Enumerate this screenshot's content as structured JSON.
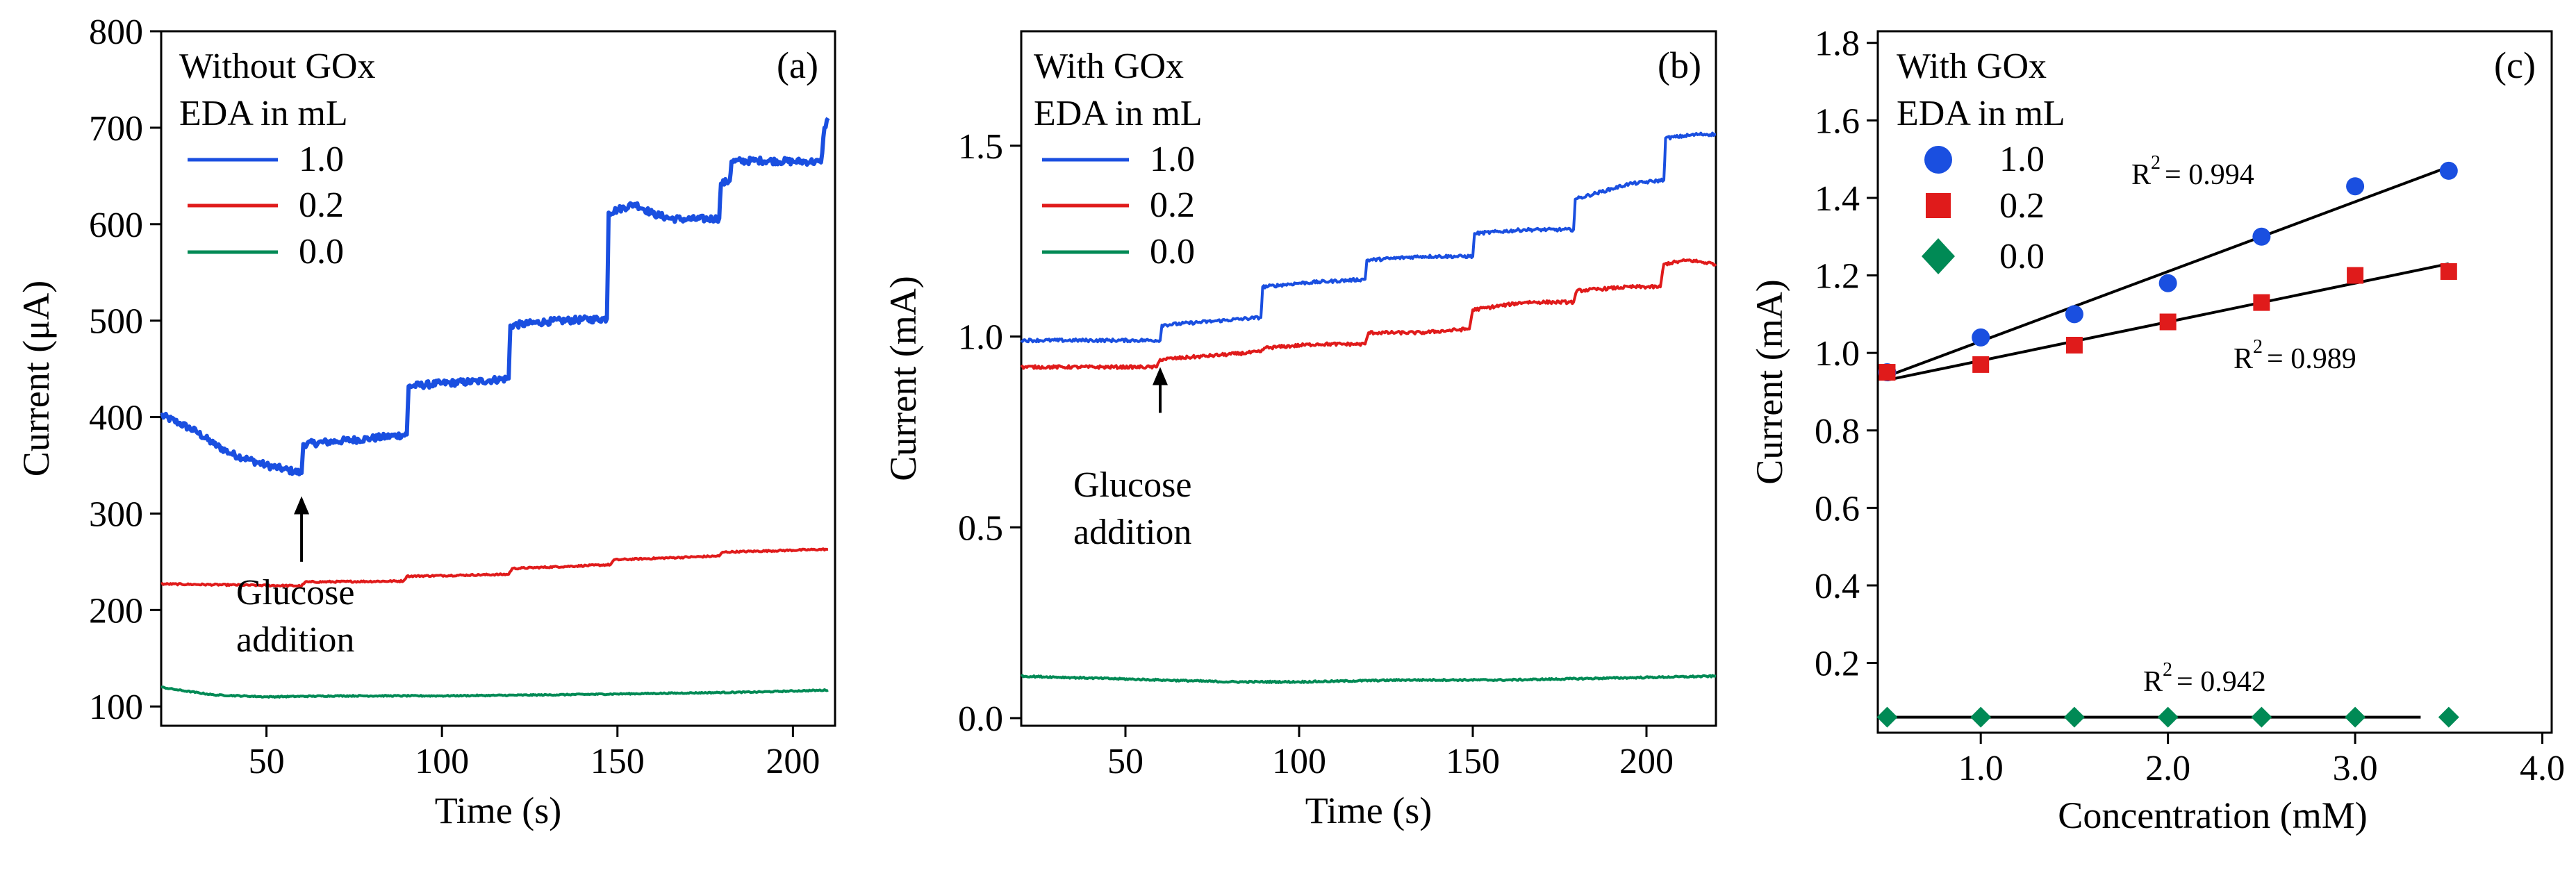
{
  "colors": {
    "blue": "#1a4fe0",
    "red": "#e01b1b",
    "green": "#008a55",
    "axis": "#000000"
  },
  "chart_data": [
    {
      "type": "line",
      "panel_label": "(a)",
      "title": "",
      "xlabel": "Time (s)",
      "ylabel": "Current (μA)",
      "xlim": [
        20,
        212
      ],
      "ylim": [
        80,
        800
      ],
      "xticks": [
        50,
        100,
        150,
        200
      ],
      "yticks": [
        100,
        200,
        300,
        400,
        500,
        600,
        700,
        800
      ],
      "xtick_labels": [
        "50",
        "100",
        "150",
        "200"
      ],
      "ytick_labels": [
        "100",
        "200",
        "300",
        "400",
        "500",
        "600",
        "700",
        "800"
      ],
      "legend_title": [
        "Without GOx",
        "EDA in mL"
      ],
      "annotation": {
        "lines": [
          "Glucose",
          "addition"
        ],
        "arrow_x": 60,
        "arrow_y_from": 250,
        "arrow_y_to": 318
      },
      "series": [
        {
          "name": "1.0",
          "color": "blue",
          "noise": 3.5,
          "points": [
            [
              20,
              402
            ],
            [
              25,
              394
            ],
            [
              30,
              385
            ],
            [
              35,
              372
            ],
            [
              40,
              362
            ],
            [
              45,
              356
            ],
            [
              50,
              350
            ],
            [
              55,
              346
            ],
            [
              60,
              342
            ],
            [
              60.5,
              372
            ],
            [
              70,
              375
            ],
            [
              80,
              378
            ],
            [
              90,
              382
            ],
            [
              90.5,
              432
            ],
            [
              100,
              435
            ],
            [
              110,
              437
            ],
            [
              119,
              440
            ],
            [
              119.5,
              495
            ],
            [
              130,
              499
            ],
            [
              140,
              501
            ],
            [
              147,
              502
            ],
            [
              147.5,
              612
            ],
            [
              150,
              615
            ],
            [
              155,
              621
            ],
            [
              160,
              611
            ],
            [
              165,
              606
            ],
            [
              170,
              605
            ],
            [
              179,
              606
            ],
            [
              179.5,
              642
            ],
            [
              182,
              645
            ],
            [
              182.5,
              665
            ],
            [
              190,
              666
            ],
            [
              200,
              665
            ],
            [
              205,
              665
            ],
            [
              208,
              664
            ],
            [
              209,
              700
            ],
            [
              210,
              710
            ]
          ]
        },
        {
          "name": "0.2",
          "color": "red",
          "noise": 0.8,
          "points": [
            [
              20,
              227
            ],
            [
              40,
              226
            ],
            [
              60,
              225
            ],
            [
              61,
              229
            ],
            [
              89,
              230
            ],
            [
              90,
              235
            ],
            [
              119,
              237
            ],
            [
              120,
              243
            ],
            [
              148,
              247
            ],
            [
              149,
              252
            ],
            [
              179,
              256
            ],
            [
              180,
              260
            ],
            [
              210,
              263
            ]
          ]
        },
        {
          "name": "0.0",
          "color": "green",
          "noise": 0.6,
          "points": [
            [
              20,
              120
            ],
            [
              25,
              117
            ],
            [
              35,
              112
            ],
            [
              50,
              110
            ],
            [
              70,
              111
            ],
            [
              100,
              111
            ],
            [
              130,
              112
            ],
            [
              150,
              113
            ],
            [
              170,
              114
            ],
            [
              190,
              115
            ],
            [
              210,
              117
            ]
          ]
        }
      ]
    },
    {
      "type": "line",
      "panel_label": "(b)",
      "title": "",
      "xlabel": "Time (s)",
      "ylabel": "Current (mA)",
      "xlim": [
        20,
        220
      ],
      "ylim": [
        -0.02,
        1.8
      ],
      "xticks": [
        50,
        100,
        150,
        200
      ],
      "yticks": [
        0.0,
        0.5,
        1.0,
        1.5
      ],
      "xtick_labels": [
        "50",
        "100",
        "150",
        "200"
      ],
      "ytick_labels": [
        "0.0",
        "0.5",
        "1.0",
        "1.5"
      ],
      "legend_title": [
        "With GOx",
        "EDA in mL"
      ],
      "annotation": {
        "lines": [
          "Glucose",
          "addition"
        ],
        "arrow_x": 60,
        "arrow_y_from": 0.8,
        "arrow_y_to": 0.92
      },
      "series": [
        {
          "name": "1.0",
          "color": "blue",
          "noise": 0.004,
          "points": [
            [
              20,
              0.99
            ],
            [
              60,
              0.99
            ],
            [
              60.5,
              1.03
            ],
            [
              75,
              1.04
            ],
            [
              89,
              1.05
            ],
            [
              89.5,
              1.13
            ],
            [
              100,
              1.14
            ],
            [
              119,
              1.15
            ],
            [
              119.5,
              1.2
            ],
            [
              135,
              1.21
            ],
            [
              150,
              1.21
            ],
            [
              150.5,
              1.27
            ],
            [
              165,
              1.28
            ],
            [
              179,
              1.28
            ],
            [
              179.5,
              1.36
            ],
            [
              195,
              1.4
            ],
            [
              205,
              1.41
            ],
            [
              205.5,
              1.52
            ],
            [
              215,
              1.53
            ],
            [
              220,
              1.53
            ]
          ]
        },
        {
          "name": "0.2",
          "color": "red",
          "noise": 0.004,
          "points": [
            [
              20,
              0.92
            ],
            [
              59,
              0.92
            ],
            [
              60,
              0.94
            ],
            [
              75,
              0.95
            ],
            [
              89,
              0.96
            ],
            [
              90,
              0.97
            ],
            [
              105,
              0.98
            ],
            [
              119,
              0.98
            ],
            [
              120,
              1.01
            ],
            [
              135,
              1.01
            ],
            [
              149,
              1.02
            ],
            [
              150,
              1.07
            ],
            [
              165,
              1.09
            ],
            [
              179,
              1.09
            ],
            [
              180,
              1.12
            ],
            [
              195,
              1.13
            ],
            [
              204,
              1.13
            ],
            [
              205,
              1.19
            ],
            [
              212,
              1.2
            ],
            [
              220,
              1.19
            ]
          ]
        },
        {
          "name": "0.0",
          "color": "green",
          "noise": 0.002,
          "points": [
            [
              20,
              0.11
            ],
            [
              40,
              0.105
            ],
            [
              60,
              0.1
            ],
            [
              80,
              0.095
            ],
            [
              100,
              0.095
            ],
            [
              130,
              0.1
            ],
            [
              160,
              0.1
            ],
            [
              190,
              0.105
            ],
            [
              220,
              0.11
            ]
          ]
        }
      ]
    },
    {
      "type": "scatter",
      "panel_label": "(c)",
      "title": "",
      "xlabel": "Concentration (mM)",
      "ylabel": "Current (mA)",
      "xlim": [
        0.45,
        4.05
      ],
      "ylim": [
        0.02,
        1.83
      ],
      "xticks": [
        1.0,
        2.0,
        3.0,
        4.0
      ],
      "yticks": [
        0.2,
        0.4,
        0.6,
        0.8,
        1.0,
        1.2,
        1.4,
        1.6,
        1.8
      ],
      "xtick_labels": [
        "1.0",
        "2.0",
        "3.0",
        "4.0"
      ],
      "ytick_labels": [
        "0.2",
        "0.4",
        "0.6",
        "0.8",
        "1.0",
        "1.2",
        "1.4",
        "1.6",
        "1.8"
      ],
      "legend_title": [
        "With GOx",
        "EDA in mL"
      ],
      "series": [
        {
          "name": "1.0",
          "color": "blue",
          "marker": "circle",
          "x": [
            0.5,
            1.0,
            1.5,
            2.0,
            2.5,
            3.0,
            3.5
          ],
          "y": [
            0.95,
            1.04,
            1.1,
            1.18,
            1.3,
            1.43,
            1.47
          ],
          "fit": {
            "x": [
              0.5,
              3.5
            ],
            "y": [
              0.94,
              1.48
            ],
            "label": "R",
            "sup": "2",
            "value": "= 0.994"
          }
        },
        {
          "name": "0.2",
          "color": "red",
          "marker": "square",
          "x": [
            0.5,
            1.0,
            1.5,
            2.0,
            2.5,
            3.0,
            3.5
          ],
          "y": [
            0.95,
            0.97,
            1.02,
            1.08,
            1.13,
            1.2,
            1.21
          ],
          "fit": {
            "x": [
              0.5,
              3.5
            ],
            "y": [
              0.93,
              1.23
            ],
            "label": "R",
            "sup": "2",
            "value": "= 0.989"
          }
        },
        {
          "name": "0.0",
          "color": "green",
          "marker": "diamond",
          "x": [
            0.5,
            1.0,
            1.5,
            2.0,
            2.5,
            3.0,
            3.5
          ],
          "y": [
            0.06,
            0.06,
            0.06,
            0.06,
            0.06,
            0.06,
            0.06
          ],
          "fit": {
            "x": [
              0.5,
              3.35
            ],
            "y": [
              0.06,
              0.06
            ],
            "label": "R",
            "sup": "2",
            "value": "= 0.942"
          }
        }
      ]
    }
  ]
}
